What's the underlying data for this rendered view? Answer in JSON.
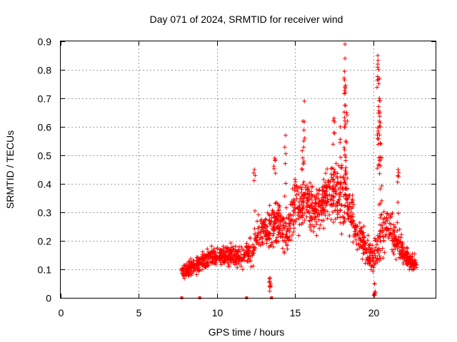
{
  "chart_data": {
    "type": "scatter",
    "title": "Day 071 of 2024, SRMTID for receiver wind",
    "xlabel": "GPS time / hours",
    "ylabel": "SRMTID / TECUs",
    "xlim": [
      0,
      24
    ],
    "ylim": [
      0,
      0.9
    ],
    "xticks": [
      0,
      5,
      10,
      15,
      20
    ],
    "yticks": [
      0,
      0.1,
      0.2,
      0.3,
      0.4,
      0.5,
      0.6,
      0.7,
      0.8,
      0.9
    ],
    "xtick_labels": [
      "0",
      "5",
      "10",
      "15",
      "20"
    ],
    "ytick_labels": [
      "0",
      "0.1",
      "0.2",
      "0.3",
      "0.4",
      "0.5",
      "0.6",
      "0.7",
      "0.8",
      "0.9"
    ],
    "grid": true,
    "marker": "+",
    "color": "#ff0000",
    "x_extent": [
      7.7,
      22.8
    ],
    "series": [
      {
        "name": "SRMTID",
        "profile_x": [
          7.7,
          8.5,
          9.5,
          10.5,
          11.5,
          12.3,
          12.8,
          13.5,
          14.0,
          14.5,
          15.0,
          15.6,
          16.2,
          16.8,
          17.4,
          18.0,
          18.5,
          19.0,
          19.5,
          20.0,
          20.5,
          21.0,
          21.5,
          22.0,
          22.8
        ],
        "profile_center": [
          0.09,
          0.11,
          0.14,
          0.15,
          0.14,
          0.17,
          0.23,
          0.25,
          0.27,
          0.22,
          0.32,
          0.35,
          0.3,
          0.34,
          0.38,
          0.36,
          0.3,
          0.22,
          0.18,
          0.13,
          0.22,
          0.26,
          0.2,
          0.15,
          0.11
        ],
        "profile_spread": [
          0.03,
          0.04,
          0.05,
          0.05,
          0.05,
          0.08,
          0.1,
          0.1,
          0.13,
          0.1,
          0.12,
          0.14,
          0.1,
          0.12,
          0.14,
          0.15,
          0.12,
          0.08,
          0.08,
          0.07,
          0.12,
          0.1,
          0.08,
          0.05,
          0.04
        ],
        "spikes": [
          {
            "x": 12.4,
            "y": 0.45
          },
          {
            "x": 13.7,
            "y": 0.49
          },
          {
            "x": 14.4,
            "y": 0.57
          },
          {
            "x": 15.6,
            "y": 0.69
          },
          {
            "x": 15.5,
            "y": 0.62
          },
          {
            "x": 17.5,
            "y": 0.63
          },
          {
            "x": 17.9,
            "y": 0.6
          },
          {
            "x": 18.2,
            "y": 0.89
          },
          {
            "x": 18.2,
            "y": 0.84
          },
          {
            "x": 18.2,
            "y": 0.74
          },
          {
            "x": 18.3,
            "y": 0.65
          },
          {
            "x": 20.3,
            "y": 0.85
          },
          {
            "x": 20.3,
            "y": 0.82
          },
          {
            "x": 20.4,
            "y": 0.77
          },
          {
            "x": 20.4,
            "y": 0.7
          },
          {
            "x": 20.4,
            "y": 0.62
          },
          {
            "x": 20.5,
            "y": 0.54
          },
          {
            "x": 21.6,
            "y": 0.45
          },
          {
            "x": 13.4,
            "y": 0.07
          },
          {
            "x": 20.1,
            "y": 0.05
          }
        ]
      }
    ],
    "zero_markers_x": [
      7.75,
      8.9,
      11.9,
      13.5
    ]
  }
}
